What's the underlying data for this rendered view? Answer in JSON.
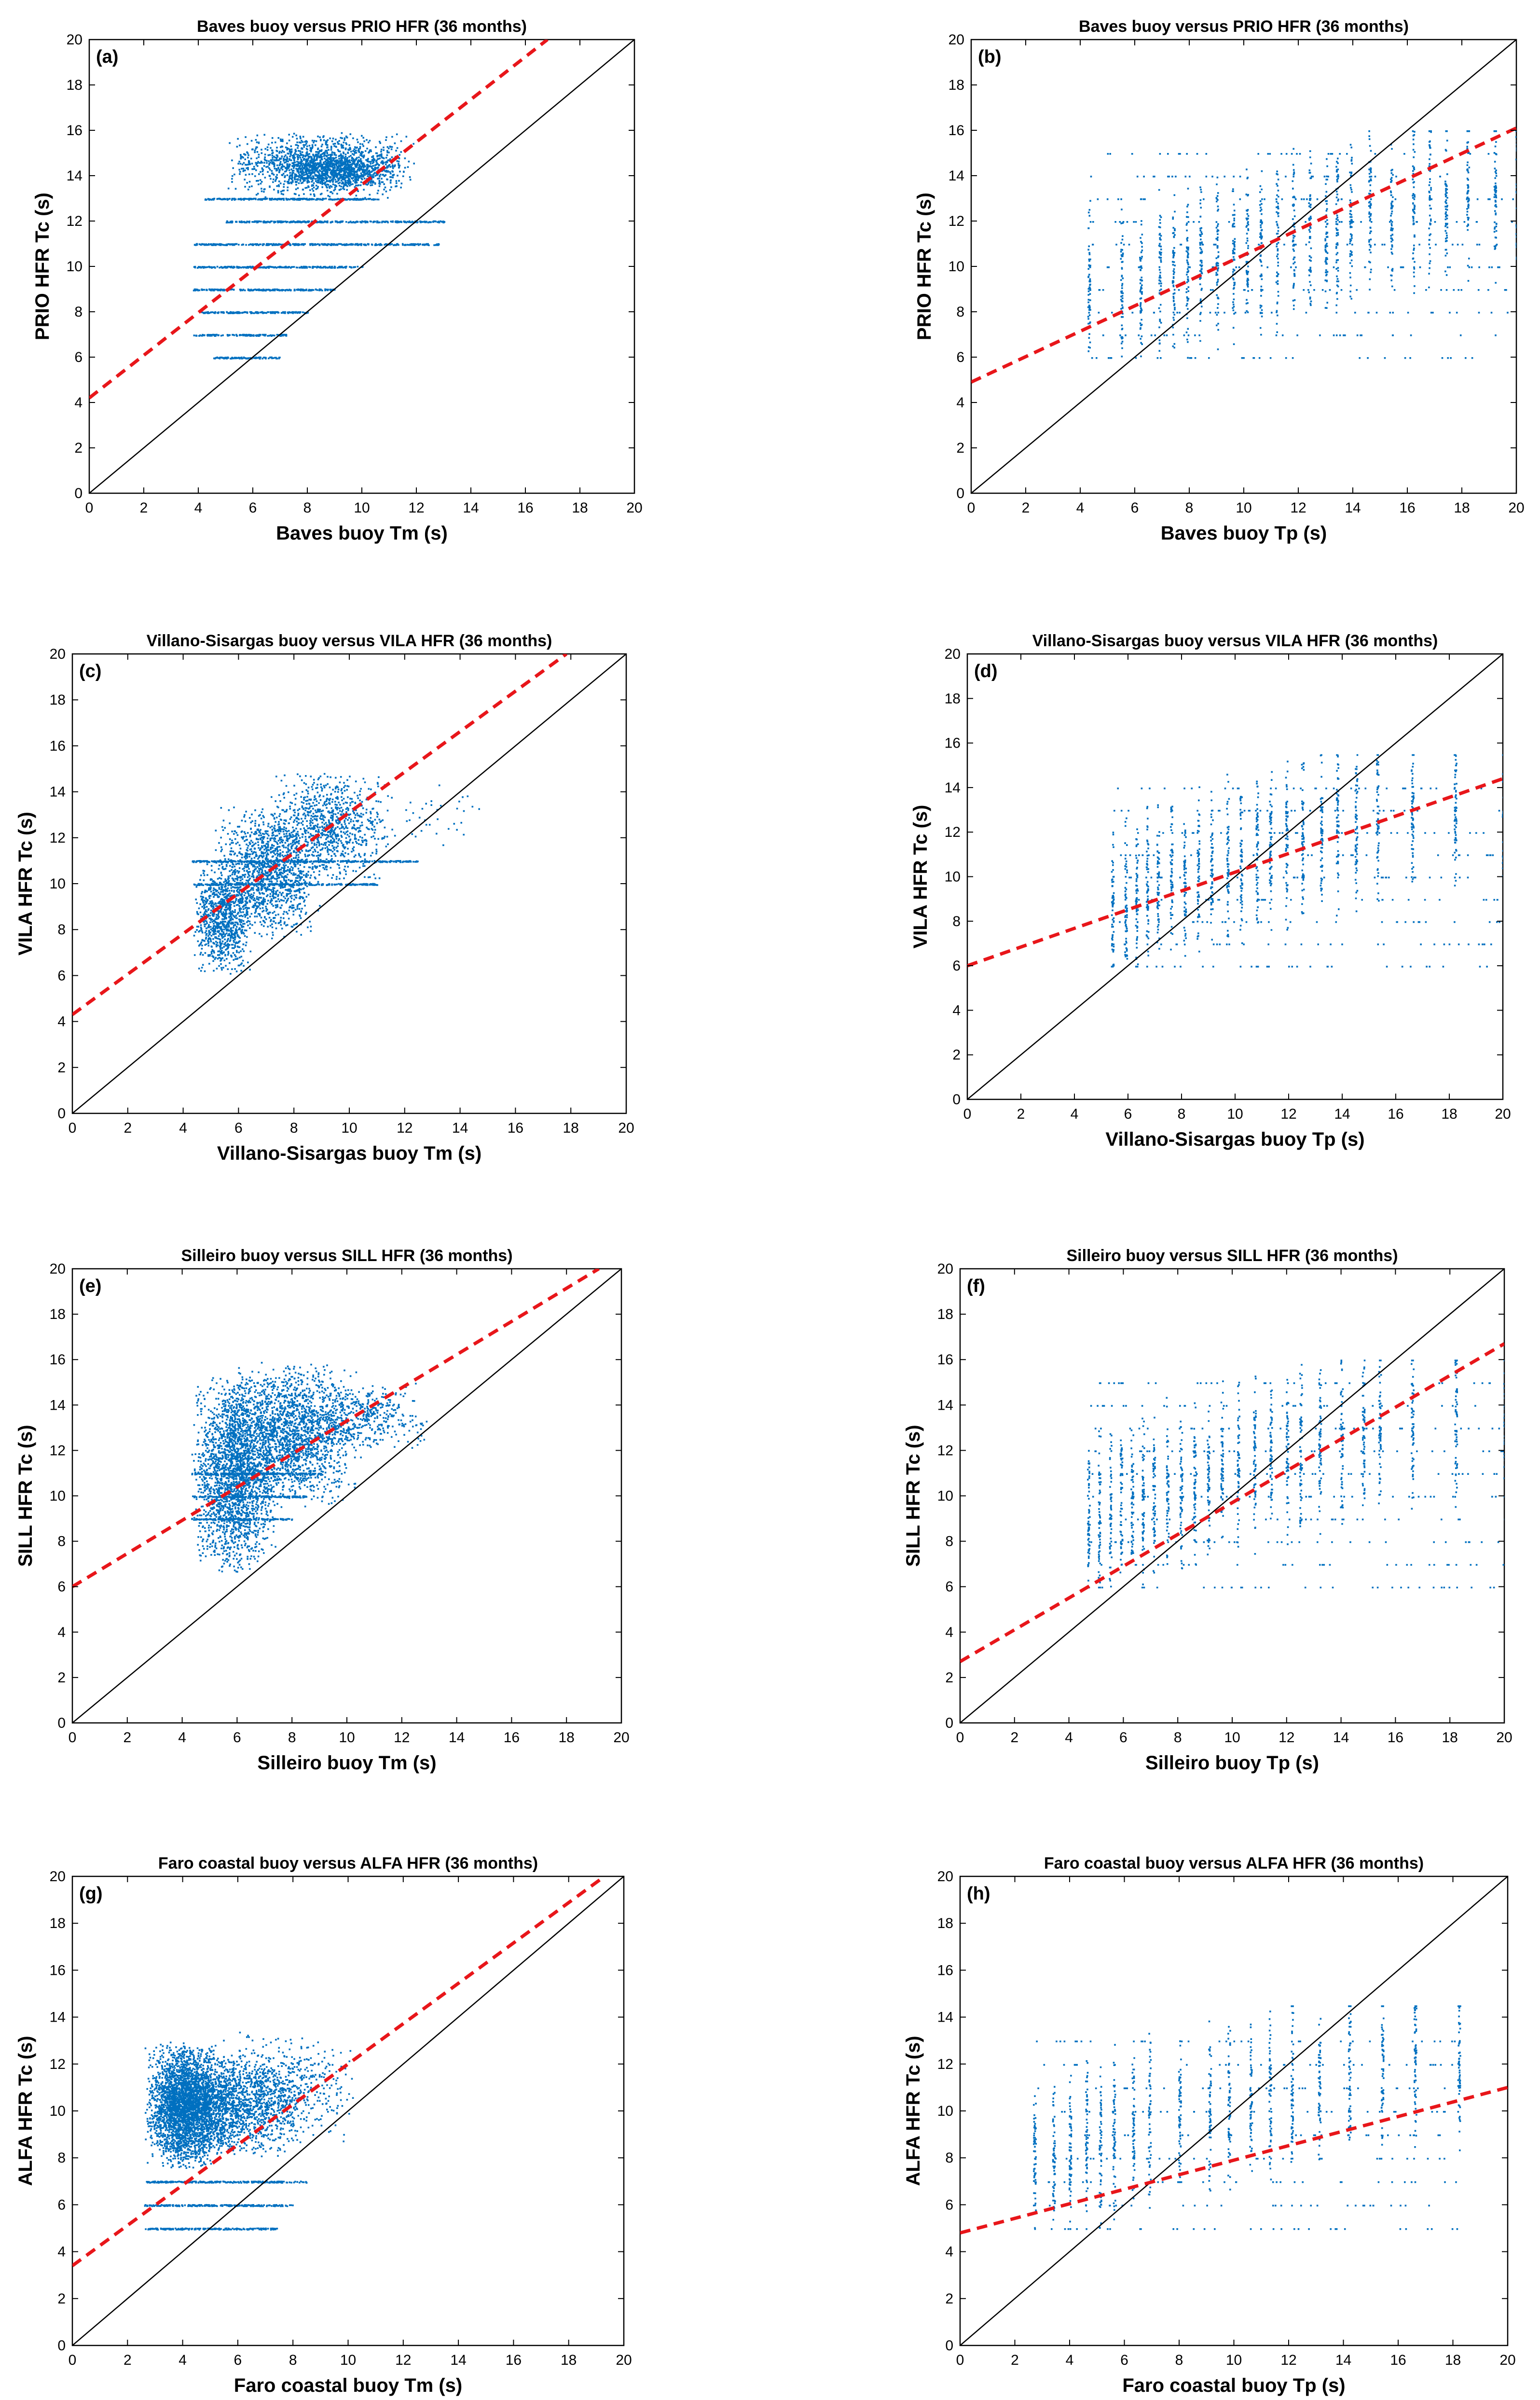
{
  "figure": {
    "marker_color": "#0070c0",
    "fit_color": "#e8161a",
    "reference_color": "#000000"
  },
  "chart_data": [
    {
      "id": "a",
      "type": "scatter",
      "panel_label": "(a)",
      "title": "Baves buoy versus PRIO HFR (36 months)",
      "xlabel": "Baves buoy Tm (s)",
      "ylabel": "PRIO HFR Tc (s)",
      "xlim": [
        0,
        20
      ],
      "ylim": [
        0,
        20
      ],
      "xticks": [
        0,
        2,
        4,
        6,
        8,
        10,
        12,
        14,
        16,
        18,
        20
      ],
      "yticks": [
        0,
        2,
        4,
        6,
        8,
        10,
        12,
        14,
        16,
        18,
        20
      ],
      "reference_line": {
        "slope": 1,
        "intercept": 0
      },
      "fit_line": {
        "slope": 0.94,
        "intercept": 4.2
      },
      "series_mode": "tm",
      "clusters": [
        {
          "x": [
            5.0,
            12.0
          ],
          "y": [
            13.0,
            16.0
          ],
          "n": 1400
        },
        {
          "x": [
            7.0,
            11.5
          ],
          "y": [
            13.5,
            15.0
          ],
          "n": 600
        }
      ],
      "bands": [
        {
          "y": 6,
          "x": [
            4.5,
            7.0
          ]
        },
        {
          "y": 7,
          "x": [
            3.8,
            7.2
          ]
        },
        {
          "y": 8,
          "x": [
            4.0,
            8.0
          ]
        },
        {
          "y": 9,
          "x": [
            3.8,
            9.0
          ]
        },
        {
          "y": 10,
          "x": [
            3.8,
            10.0
          ]
        },
        {
          "y": 11,
          "x": [
            3.8,
            12.8
          ]
        },
        {
          "y": 12,
          "x": [
            5.0,
            13.0
          ]
        },
        {
          "y": 13,
          "x": [
            4.2,
            10.6
          ]
        }
      ]
    },
    {
      "id": "b",
      "type": "scatter",
      "panel_label": "(b)",
      "title": "Baves buoy versus PRIO HFR (36 months)",
      "xlabel": "Baves buoy Tp (s)",
      "ylabel": "PRIO HFR Tc (s)",
      "xlim": [
        0,
        20
      ],
      "ylim": [
        0,
        20
      ],
      "xticks": [
        0,
        2,
        4,
        6,
        8,
        10,
        12,
        14,
        16,
        18,
        20
      ],
      "yticks": [
        0,
        2,
        4,
        6,
        8,
        10,
        12,
        14,
        16,
        18,
        20
      ],
      "reference_line": {
        "slope": 1,
        "intercept": 0
      },
      "fit_line": {
        "slope": 0.56,
        "intercept": 4.9
      },
      "series_mode": "tp",
      "tp_columns": [
        4.3,
        5.5,
        6.2,
        6.9,
        7.4,
        7.9,
        8.4,
        9.0,
        9.6,
        10.1,
        10.6,
        11.2,
        11.8,
        12.4,
        13.0,
        13.4,
        13.9,
        14.6,
        15.4,
        16.2,
        16.8,
        17.4,
        18.2,
        19.2,
        20.0
      ],
      "y_range": [
        6.0,
        16.0
      ]
    },
    {
      "id": "c",
      "type": "scatter",
      "panel_label": "(c)",
      "title": "Villano-Sisargas buoy versus VILA HFR (36 months)",
      "xlabel": "Villano-Sisargas buoy Tm (s)",
      "ylabel": "VILA HFR Tc (s)",
      "xlim": [
        0,
        20
      ],
      "ylim": [
        0,
        20
      ],
      "xticks": [
        0,
        2,
        4,
        6,
        8,
        10,
        12,
        14,
        16,
        18,
        20
      ],
      "yticks": [
        0,
        2,
        4,
        6,
        8,
        10,
        12,
        14,
        16,
        18,
        20
      ],
      "reference_line": {
        "slope": 1,
        "intercept": 0
      },
      "fit_line": {
        "slope": 0.88,
        "intercept": 4.3
      },
      "series_mode": "tm",
      "clusters": [
        {
          "x": [
            4.3,
            6.5
          ],
          "y": [
            6.0,
            11.0
          ],
          "n": 900
        },
        {
          "x": [
            5.0,
            9.0
          ],
          "y": [
            7.5,
            13.5
          ],
          "n": 1300
        },
        {
          "x": [
            7.0,
            11.5
          ],
          "y": [
            10.0,
            15.0
          ],
          "n": 900
        },
        {
          "x": [
            10.5,
            15.0
          ],
          "y": [
            11.5,
            14.5
          ],
          "n": 40
        }
      ],
      "bands": [
        {
          "y": 11,
          "x": [
            4.3,
            12.5
          ]
        },
        {
          "y": 10,
          "x": [
            4.3,
            11.0
          ]
        }
      ]
    },
    {
      "id": "d",
      "type": "scatter",
      "panel_label": "(d)",
      "title": "Villano-Sisargas buoy versus VILA HFR (36 months)",
      "xlabel": "Villano-Sisargas buoy Tp (s)",
      "ylabel": "VILA HFR Tc (s)",
      "xlim": [
        0,
        20
      ],
      "ylim": [
        0,
        20
      ],
      "xticks": [
        0,
        2,
        4,
        6,
        8,
        10,
        12,
        14,
        16,
        18,
        20
      ],
      "yticks": [
        0,
        2,
        4,
        6,
        8,
        10,
        12,
        14,
        16,
        18,
        20
      ],
      "reference_line": {
        "slope": 1,
        "intercept": 0
      },
      "fit_line": {
        "slope": 0.42,
        "intercept": 6.0
      },
      "series_mode": "tp",
      "tp_columns": [
        5.4,
        5.9,
        6.3,
        6.7,
        7.1,
        7.6,
        8.1,
        8.6,
        9.1,
        9.7,
        10.2,
        10.8,
        11.3,
        11.9,
        12.5,
        13.2,
        13.8,
        14.5,
        15.3,
        16.6,
        18.2,
        20.0
      ],
      "y_range": [
        6.0,
        15.5
      ]
    },
    {
      "id": "e",
      "type": "scatter",
      "panel_label": "(e)",
      "title": "Silleiro buoy versus SILL HFR (36 months)",
      "xlabel": "Silleiro buoy Tm (s)",
      "ylabel": "SILL HFR Tc (s)",
      "xlim": [
        0,
        20
      ],
      "ylim": [
        0,
        20
      ],
      "xticks": [
        0,
        2,
        4,
        6,
        8,
        10,
        12,
        14,
        16,
        18,
        20
      ],
      "yticks": [
        0,
        2,
        4,
        6,
        8,
        10,
        12,
        14,
        16,
        18,
        20
      ],
      "reference_line": {
        "slope": 1,
        "intercept": 0
      },
      "fit_line": {
        "slope": 0.73,
        "intercept": 6.0
      },
      "series_mode": "tm",
      "clusters": [
        {
          "x": [
            4.3,
            7.5
          ],
          "y": [
            6.5,
            15.5
          ],
          "n": 2200
        },
        {
          "x": [
            5.5,
            10.5
          ],
          "y": [
            9.5,
            16.0
          ],
          "n": 1800
        },
        {
          "x": [
            8.5,
            13.0
          ],
          "y": [
            12.0,
            15.0
          ],
          "n": 400
        }
      ],
      "bands": [
        {
          "y": 11,
          "x": [
            4.3,
            9.0
          ]
        },
        {
          "y": 10,
          "x": [
            4.3,
            8.5
          ]
        },
        {
          "y": 9,
          "x": [
            4.3,
            8.0
          ]
        }
      ]
    },
    {
      "id": "f",
      "type": "scatter",
      "panel_label": "(f)",
      "title": "Silleiro buoy versus SILL HFR (36 months)",
      "xlabel": "Silleiro buoy Tp (s)",
      "ylabel": "SILL HFR Tc (s)",
      "xlim": [
        0,
        20
      ],
      "ylim": [
        0,
        20
      ],
      "xticks": [
        0,
        2,
        4,
        6,
        8,
        10,
        12,
        14,
        16,
        18,
        20
      ],
      "yticks": [
        0,
        2,
        4,
        6,
        8,
        10,
        12,
        14,
        16,
        18,
        20
      ],
      "reference_line": {
        "slope": 1,
        "intercept": 0
      },
      "fit_line": {
        "slope": 0.7,
        "intercept": 2.7
      },
      "series_mode": "tp",
      "tp_columns": [
        4.7,
        5.1,
        5.5,
        5.9,
        6.3,
        6.7,
        7.1,
        7.6,
        8.1,
        8.6,
        9.1,
        9.6,
        10.2,
        10.8,
        11.4,
        12.0,
        12.5,
        13.2,
        14.0,
        14.8,
        15.4,
        16.6,
        18.2,
        20.0
      ],
      "y_range": [
        6.0,
        16.0
      ]
    },
    {
      "id": "g",
      "type": "scatter",
      "panel_label": "(g)",
      "title": "Faro coastal buoy versus ALFA HFR (36 months)",
      "xlabel": "Faro coastal buoy Tm (s)",
      "ylabel": "ALFA HFR Tc (s)",
      "xlim": [
        0,
        20
      ],
      "ylim": [
        0,
        20
      ],
      "xticks": [
        0,
        2,
        4,
        6,
        8,
        10,
        12,
        14,
        16,
        18,
        20
      ],
      "yticks": [
        0,
        2,
        4,
        6,
        8,
        10,
        12,
        14,
        16,
        18,
        20
      ],
      "reference_line": {
        "slope": 1,
        "intercept": 0
      },
      "fit_line": {
        "slope": 0.86,
        "intercept": 3.4
      },
      "series_mode": "tm",
      "clusters": [
        {
          "x": [
            2.6,
            5.5
          ],
          "y": [
            7.5,
            13.0
          ],
          "n": 2600
        },
        {
          "x": [
            2.6,
            8.5
          ],
          "y": [
            8.0,
            12.5
          ],
          "n": 1800
        },
        {
          "x": [
            5.0,
            10.5
          ],
          "y": [
            8.5,
            13.5
          ],
          "n": 500
        }
      ],
      "bands": [
        {
          "y": 5,
          "x": [
            2.6,
            7.4
          ]
        },
        {
          "y": 6,
          "x": [
            2.6,
            8.0
          ]
        },
        {
          "y": 7,
          "x": [
            2.6,
            8.5
          ]
        }
      ]
    },
    {
      "id": "h",
      "type": "scatter",
      "panel_label": "(h)",
      "title": "Faro coastal buoy versus ALFA HFR (36 months)",
      "xlabel": "Faro coastal buoy Tp (s)",
      "ylabel": "ALFA HFR Tc (s)",
      "xlim": [
        0,
        20
      ],
      "ylim": [
        0,
        20
      ],
      "xticks": [
        0,
        2,
        4,
        6,
        8,
        10,
        12,
        14,
        16,
        18,
        20
      ],
      "yticks": [
        0,
        2,
        4,
        6,
        8,
        10,
        12,
        14,
        16,
        18,
        20
      ],
      "reference_line": {
        "slope": 1,
        "intercept": 0
      },
      "fit_line": {
        "slope": 0.31,
        "intercept": 4.8
      },
      "series_mode": "tp",
      "tp_columns": [
        2.7,
        3.4,
        4.0,
        4.6,
        5.1,
        5.6,
        6.3,
        6.9,
        8.0,
        9.1,
        9.8,
        10.6,
        11.3,
        12.1,
        13.1,
        14.2,
        15.4,
        16.6,
        18.2
      ],
      "y_range": [
        5.0,
        14.5
      ]
    }
  ]
}
